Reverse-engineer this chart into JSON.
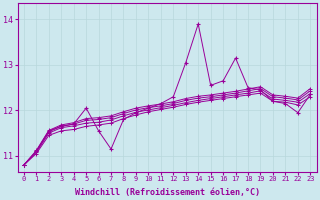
{
  "x_range": [
    -0.5,
    23.5
  ],
  "y_range": [
    10.65,
    14.35
  ],
  "yticks": [
    11,
    12,
    13,
    14
  ],
  "xtick_labels": [
    "0",
    "1",
    "2",
    "3",
    "4",
    "5",
    "6",
    "7",
    "8",
    "9",
    "10",
    "11",
    "12",
    "13",
    "14",
    "15",
    "16",
    "17",
    "18",
    "19",
    "20",
    "21",
    "22",
    "23"
  ],
  "xlabel": "Windchill (Refroidissement éolien,°C)",
  "bg_color": "#cde8ee",
  "line_color": "#990099",
  "grid_color": "#b8d8dc",
  "series": [
    [
      10.8,
      11.1,
      11.55,
      11.65,
      11.7,
      12.05,
      11.55,
      11.15,
      11.8,
      11.95,
      12.05,
      12.15,
      12.3,
      13.05,
      13.9,
      12.55,
      12.65,
      13.15,
      12.5,
      12.45,
      12.2,
      12.15,
      11.95,
      12.35
    ],
    [
      10.8,
      11.05,
      11.45,
      11.55,
      11.58,
      11.65,
      11.68,
      11.72,
      11.82,
      11.9,
      11.97,
      12.02,
      12.07,
      12.13,
      12.18,
      12.22,
      12.26,
      12.3,
      12.34,
      12.38,
      12.2,
      12.18,
      12.12,
      12.3
    ],
    [
      10.8,
      11.08,
      11.5,
      11.62,
      11.66,
      11.72,
      11.74,
      11.79,
      11.88,
      11.96,
      12.01,
      12.06,
      12.11,
      12.17,
      12.22,
      12.26,
      12.3,
      12.34,
      12.38,
      12.43,
      12.25,
      12.22,
      12.18,
      12.37
    ],
    [
      10.8,
      11.1,
      11.53,
      11.65,
      11.7,
      11.78,
      11.8,
      11.84,
      11.93,
      12.01,
      12.06,
      12.1,
      12.15,
      12.22,
      12.27,
      12.3,
      12.34,
      12.38,
      12.43,
      12.48,
      12.3,
      12.27,
      12.23,
      12.43
    ],
    [
      10.8,
      11.12,
      11.56,
      11.68,
      11.73,
      11.82,
      11.84,
      11.88,
      11.97,
      12.05,
      12.1,
      12.14,
      12.19,
      12.26,
      12.31,
      12.34,
      12.38,
      12.42,
      12.47,
      12.52,
      12.34,
      12.31,
      12.27,
      12.48
    ]
  ]
}
